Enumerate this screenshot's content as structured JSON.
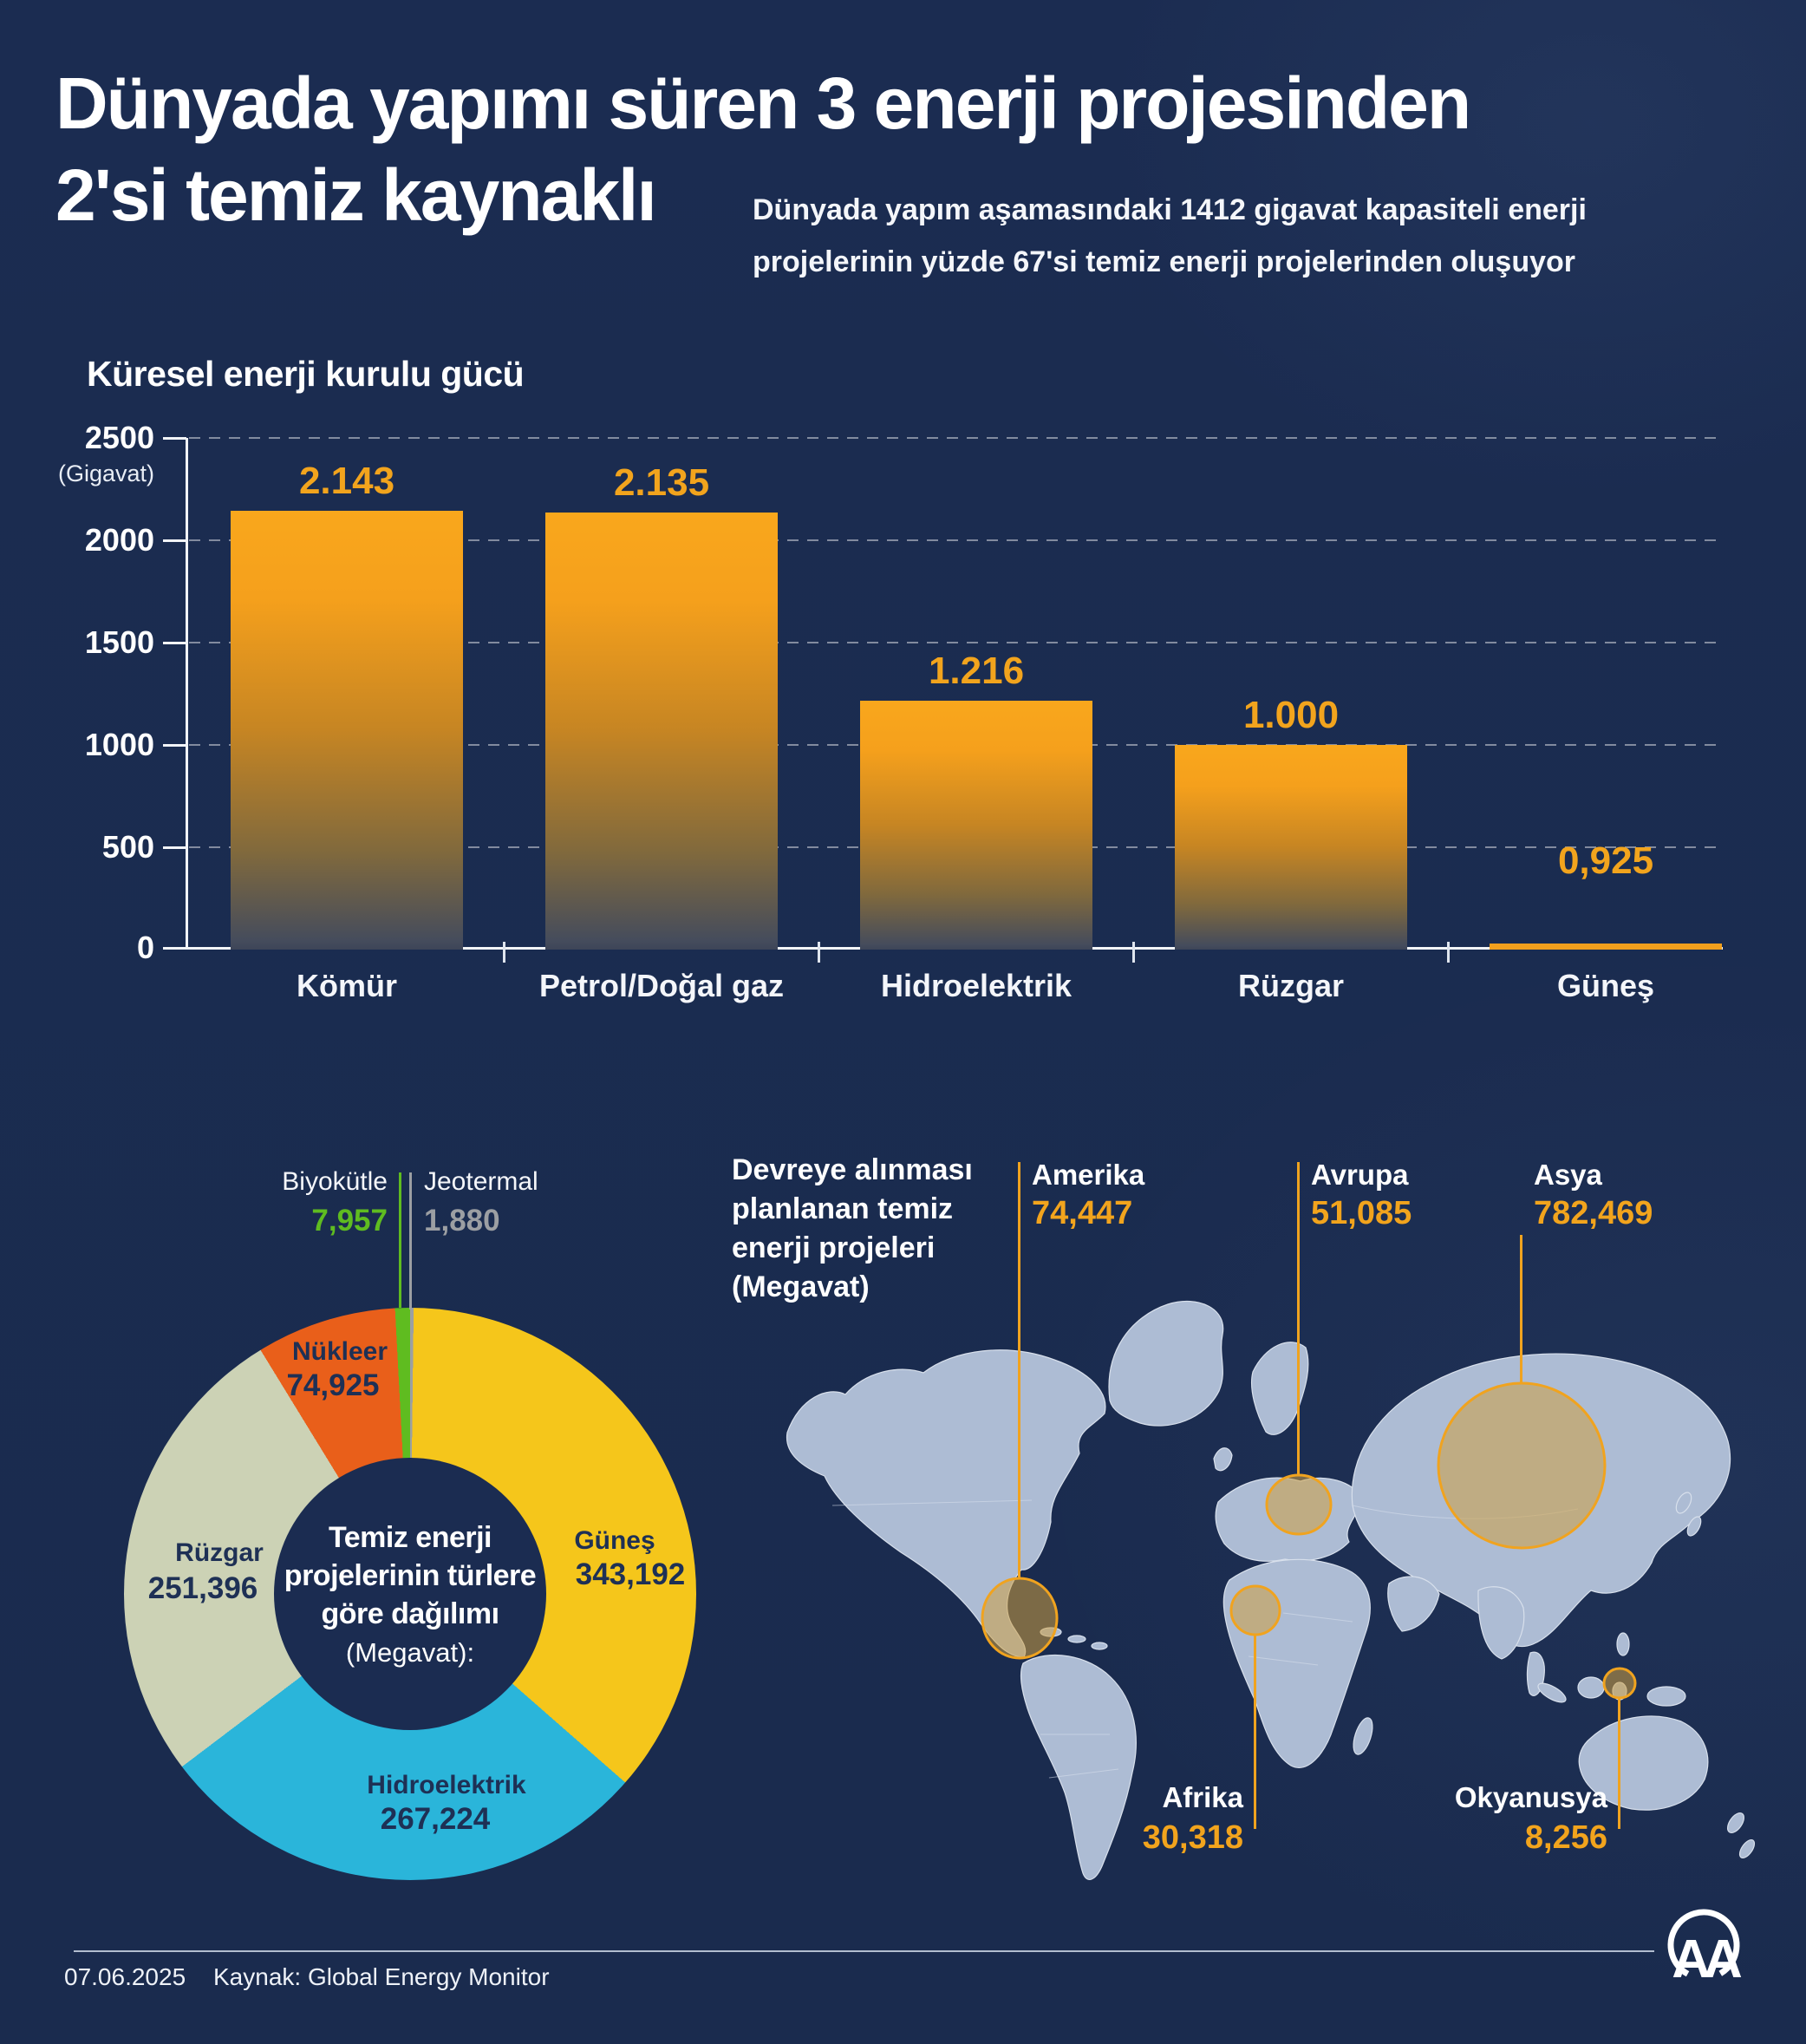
{
  "header": {
    "title_line1": "Dünyada yapımı süren 3 enerji projesinden",
    "title_line2": "2'si temiz kaynaklı",
    "subtitle": "Dünyada yapım aşamasındaki 1412 gigavat kapasiteli enerji projelerinin yüzde 67'si temiz enerji projelerinden oluşuyor"
  },
  "bar_chart": {
    "title": "Küresel enerji kurulu gücü",
    "unit_label": "(Gigavat)",
    "y_ticks": [
      "2500",
      "2000",
      "1500",
      "1000",
      "500",
      "0"
    ],
    "bars": [
      {
        "label": "Kömür",
        "value_display": "2.143"
      },
      {
        "label": "Petrol/Doğal gaz",
        "value_display": "2.135"
      },
      {
        "label": "Hidroelektrik",
        "value_display": "1.216"
      },
      {
        "label": "Rüzgar",
        "value_display": "1.000"
      },
      {
        "label": "Güneş",
        "value_display": "0,925"
      }
    ]
  },
  "donut": {
    "center_line1": "Temiz enerji",
    "center_line2": "projelerinin türlere",
    "center_line3": "göre dağılımı",
    "center_line4": "(Megavat):",
    "slices": [
      {
        "name": "Jeotermal",
        "value": 1880,
        "value_display": "1,880",
        "color": "#9c9fa3"
      },
      {
        "name": "Güneş",
        "value": 343192,
        "value_display": "343,192",
        "color": "#f5c61b"
      },
      {
        "name": "Hidroelektrik",
        "value": 267224,
        "value_display": "267,224",
        "color": "#2ab5da"
      },
      {
        "name": "Rüzgar",
        "value": 251396,
        "value_display": "251,396",
        "color": "#ccd2b5"
      },
      {
        "name": "Nükleer",
        "value": 74925,
        "value_display": "74,925",
        "color": "#e95f1a"
      },
      {
        "name": "Biyokütle",
        "value": 7957,
        "value_display": "7,957",
        "color": "#5fbc20"
      }
    ]
  },
  "map": {
    "title_line1": "Devreye alınması",
    "title_line2": "planlanan temiz",
    "title_line3": "enerji projeleri",
    "title_line4": "(Megavat)",
    "regions": [
      {
        "name": "Amerika",
        "value_display": "74,447"
      },
      {
        "name": "Avrupa",
        "value_display": "51,085"
      },
      {
        "name": "Asya",
        "value_display": "782,469"
      },
      {
        "name": "Afrika",
        "value_display": "30,318"
      },
      {
        "name": "Okyanusya",
        "value_display": "8,256"
      }
    ]
  },
  "footer": {
    "date": "07.06.2025",
    "source": "Kaynak: Global Energy Monitor",
    "logo_text": "AA"
  },
  "colors": {
    "background": "#1b2c51",
    "bar_orange": "#f9a71c",
    "value_orange": "#f2a41d",
    "map_land": "#adbcd4",
    "bubble_fill": "rgba(206,158,64,0.55)",
    "bubble_stroke": "#f0a31f",
    "biomass_green": "#5fbc20",
    "geothermal_gray": "#9c9fa3"
  },
  "chart_data": [
    {
      "type": "bar",
      "title": "Küresel enerji kurulu gücü",
      "xlabel": "",
      "ylabel": "Gigavat",
      "ylim": [
        0,
        2500
      ],
      "y_ticks": [
        0,
        500,
        1000,
        1500,
        2000,
        2500
      ],
      "grid": true,
      "categories": [
        "Kömür",
        "Petrol/Doğal gaz",
        "Hidroelektrik",
        "Rüzgar",
        "Güneş"
      ],
      "values": [
        2143,
        2135,
        1216,
        1000,
        0.925
      ],
      "value_labels": [
        "2.143",
        "2.135",
        "1.216",
        "1.000",
        "0,925"
      ],
      "bar_color": "#f9a71c"
    },
    {
      "type": "pie",
      "donut": true,
      "title": "Temiz enerji projelerinin türlere göre dağılımı (Megavat)",
      "labels": [
        "Güneş",
        "Hidroelektrik",
        "Rüzgar",
        "Nükleer",
        "Biyokütle",
        "Jeotermal"
      ],
      "values": [
        343192,
        267224,
        251396,
        74925,
        7957,
        1880
      ],
      "colors": [
        "#f5c61b",
        "#2ab5da",
        "#ccd2b5",
        "#e95f1a",
        "#5fbc20",
        "#9c9fa3"
      ]
    },
    {
      "type": "map",
      "title": "Devreye alınması planlanan temiz enerji projeleri (Megavat)",
      "regions": [
        "Amerika",
        "Avrupa",
        "Asya",
        "Afrika",
        "Okyanusya"
      ],
      "values": [
        74447,
        51085,
        782469,
        30318,
        8256
      ]
    }
  ]
}
